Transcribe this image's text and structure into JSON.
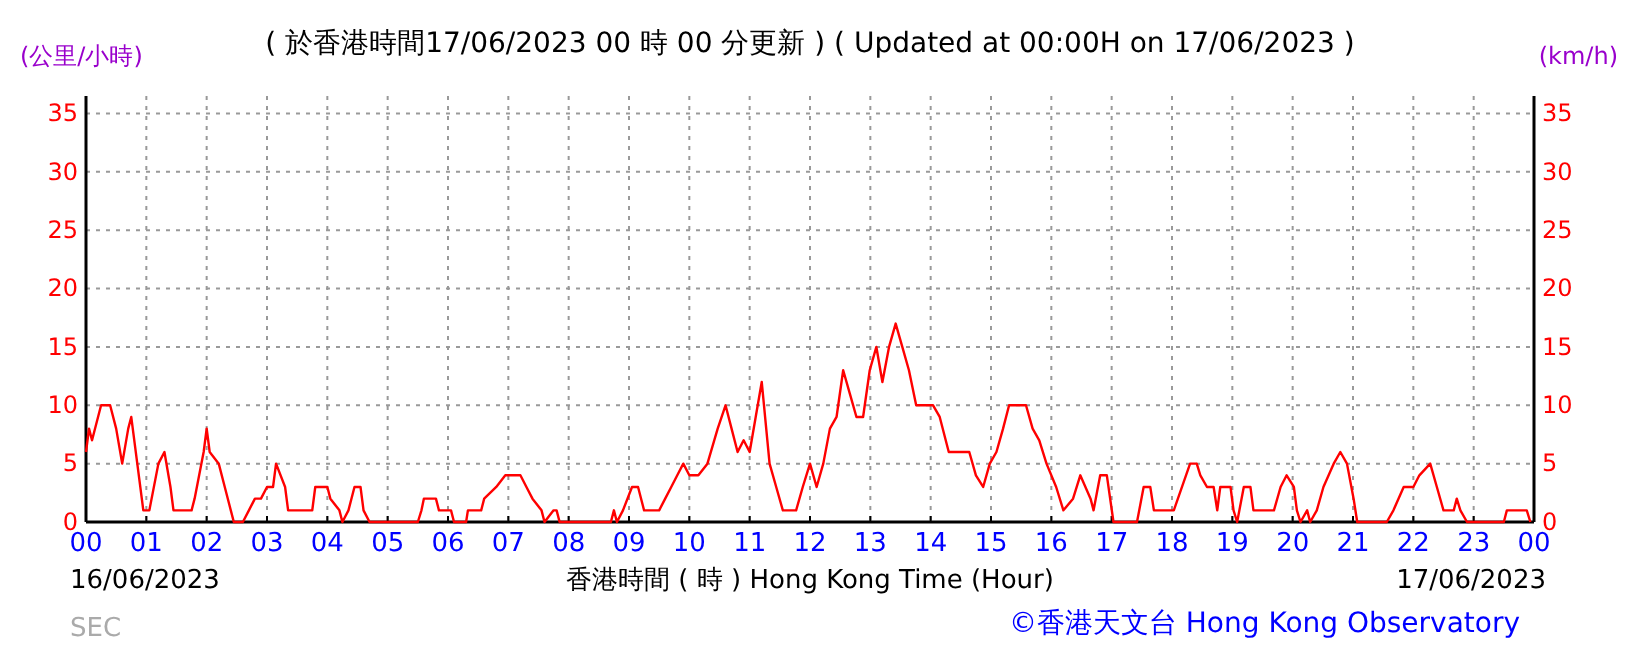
{
  "chart_data": {
    "type": "line",
    "title": "( 於香港時間17/06/2023 00 時 00 分更新 ) ( Updated at 00:00H on 17/06/2023 )",
    "ylabel": "(公里/小時)",
    "y2label": "(km/h)",
    "xlabel": "香港時間 ( 時 )  Hong Kong Time (Hour)",
    "annotations": [
      "16/06/2023",
      "17/06/2023",
      "©香港天文台 Hong Kong Observatory",
      "SEC"
    ],
    "xlim": [
      0,
      24
    ],
    "xticks": [
      {
        "value": 0,
        "label": "00"
      },
      {
        "value": 1,
        "label": "01"
      },
      {
        "value": 2,
        "label": "02"
      },
      {
        "value": 3,
        "label": "03"
      },
      {
        "value": 4,
        "label": "04"
      },
      {
        "value": 5,
        "label": "05"
      },
      {
        "value": 6,
        "label": "06"
      },
      {
        "value": 7,
        "label": "07"
      },
      {
        "value": 8,
        "label": "08"
      },
      {
        "value": 9,
        "label": "09"
      },
      {
        "value": 10,
        "label": "10"
      },
      {
        "value": 11,
        "label": "11"
      },
      {
        "value": 12,
        "label": "12"
      },
      {
        "value": 13,
        "label": "13"
      },
      {
        "value": 14,
        "label": "14"
      },
      {
        "value": 15,
        "label": "15"
      },
      {
        "value": 16,
        "label": "16"
      },
      {
        "value": 17,
        "label": "17"
      },
      {
        "value": 18,
        "label": "18"
      },
      {
        "value": 19,
        "label": "19"
      },
      {
        "value": 20,
        "label": "20"
      },
      {
        "value": 21,
        "label": "21"
      },
      {
        "value": 22,
        "label": "22"
      },
      {
        "value": 23,
        "label": "23"
      },
      {
        "value": 24,
        "label": "00"
      }
    ],
    "ylim": [
      0,
      36.5
    ],
    "yticks": [
      0,
      5,
      10,
      15,
      20,
      25,
      30,
      35
    ],
    "y2lim": [
      0,
      36.5
    ],
    "y2ticks": [
      0,
      5,
      10,
      15,
      20,
      25,
      30,
      35
    ],
    "grid": true,
    "line_style": "solid",
    "marker": "none",
    "series": [
      {
        "color": "#ff0000",
        "x": [
          0,
          0.05,
          0.1,
          0.25,
          0.4,
          0.5,
          0.6,
          0.7,
          0.75,
          0.85,
          0.95,
          1.05,
          1.2,
          1.3,
          1.4,
          1.45,
          1.75,
          1.8,
          1.95,
          2.0,
          2.05,
          2.2,
          2.3,
          2.4,
          2.45,
          2.6,
          2.7,
          2.8,
          2.9,
          3.0,
          3.1,
          3.15,
          3.3,
          3.35,
          3.75,
          3.8,
          4.0,
          4.05,
          4.2,
          4.25,
          4.35,
          4.45,
          4.55,
          4.6,
          4.7,
          5.5,
          5.56,
          5.6,
          5.8,
          5.85,
          6.05,
          6.1,
          6.3,
          6.33,
          6.55,
          6.6,
          6.8,
          6.95,
          7.2,
          7.3,
          7.4,
          7.55,
          7.6,
          7.75,
          7.8,
          7.85,
          8.7,
          8.75,
          8.8,
          8.9,
          9.05,
          9.15,
          9.25,
          9.5,
          9.6,
          9.7,
          9.8,
          9.9,
          10.0,
          10.15,
          10.3,
          10.47,
          10.6,
          10.7,
          10.8,
          10.9,
          11.0,
          11.1,
          11.2,
          11.33,
          11.44,
          11.55,
          11.77,
          11.88,
          12.0,
          12.11,
          12.22,
          12.33,
          12.44,
          12.55,
          12.66,
          12.77,
          12.88,
          12.99,
          13.1,
          13.2,
          13.31,
          13.42,
          13.53,
          13.64,
          13.76,
          13.87,
          14.04,
          14.15,
          14.3,
          14.64,
          14.75,
          14.87,
          14.98,
          15.09,
          15.2,
          15.3,
          15.58,
          15.69,
          15.8,
          15.92,
          16.08,
          16.2,
          16.36,
          16.48,
          16.65,
          16.7,
          16.81,
          16.92,
          17.03,
          17.42,
          17.53,
          17.64,
          17.7,
          18.03,
          18.3,
          18.41,
          18.47,
          18.58,
          18.69,
          18.75,
          18.8,
          18.97,
          19.02,
          19.08,
          19.19,
          19.3,
          19.35,
          19.69,
          19.8,
          19.9,
          20.02,
          20.07,
          20.13,
          20.24,
          20.29,
          20.4,
          20.51,
          20.68,
          20.79,
          20.9,
          21.01,
          21.07,
          21.56,
          21.67,
          21.84,
          22.0,
          22.1,
          22.28,
          22.39,
          22.5,
          22.67,
          22.72,
          22.78,
          22.89,
          23.5,
          23.55,
          23.88,
          23.94
        ],
        "values": [
          6,
          8,
          7,
          10,
          10,
          8,
          5,
          8,
          9,
          5,
          1,
          1,
          5,
          6,
          3,
          1,
          1,
          2,
          6,
          8,
          6,
          5,
          3,
          1,
          0,
          0,
          1,
          2,
          2,
          3,
          3,
          5,
          3,
          1,
          1,
          3,
          3,
          2,
          1,
          0,
          1,
          3,
          3,
          1,
          0,
          0,
          1,
          2,
          2,
          1,
          1,
          0,
          0,
          1,
          1,
          2,
          3,
          4,
          4,
          3,
          2,
          1,
          0,
          1,
          1,
          0,
          0,
          1,
          0,
          1,
          3,
          3,
          1,
          1,
          2,
          3,
          4,
          5,
          4,
          4,
          5,
          8,
          10,
          8,
          6,
          7,
          6,
          9,
          12,
          5,
          3,
          1,
          1,
          3,
          5,
          3,
          5,
          8,
          9,
          13,
          11,
          9,
          9,
          13,
          15,
          12,
          15,
          17,
          15,
          13,
          10,
          10,
          10,
          9,
          6,
          6,
          4,
          3,
          5,
          6,
          8,
          10,
          10,
          8,
          7,
          5,
          3,
          1,
          2,
          4,
          2,
          1,
          4,
          4,
          0,
          0,
          3,
          3,
          1,
          1,
          5,
          5,
          4,
          3,
          3,
          1,
          3,
          3,
          1,
          0,
          3,
          3,
          1,
          1,
          3,
          4,
          3,
          1,
          0,
          1,
          0,
          1,
          3,
          5,
          6,
          5,
          2,
          0,
          0,
          1,
          3,
          3,
          4,
          5,
          3,
          1,
          1,
          2,
          1,
          0,
          0,
          1,
          1,
          0
        ]
      }
    ]
  }
}
